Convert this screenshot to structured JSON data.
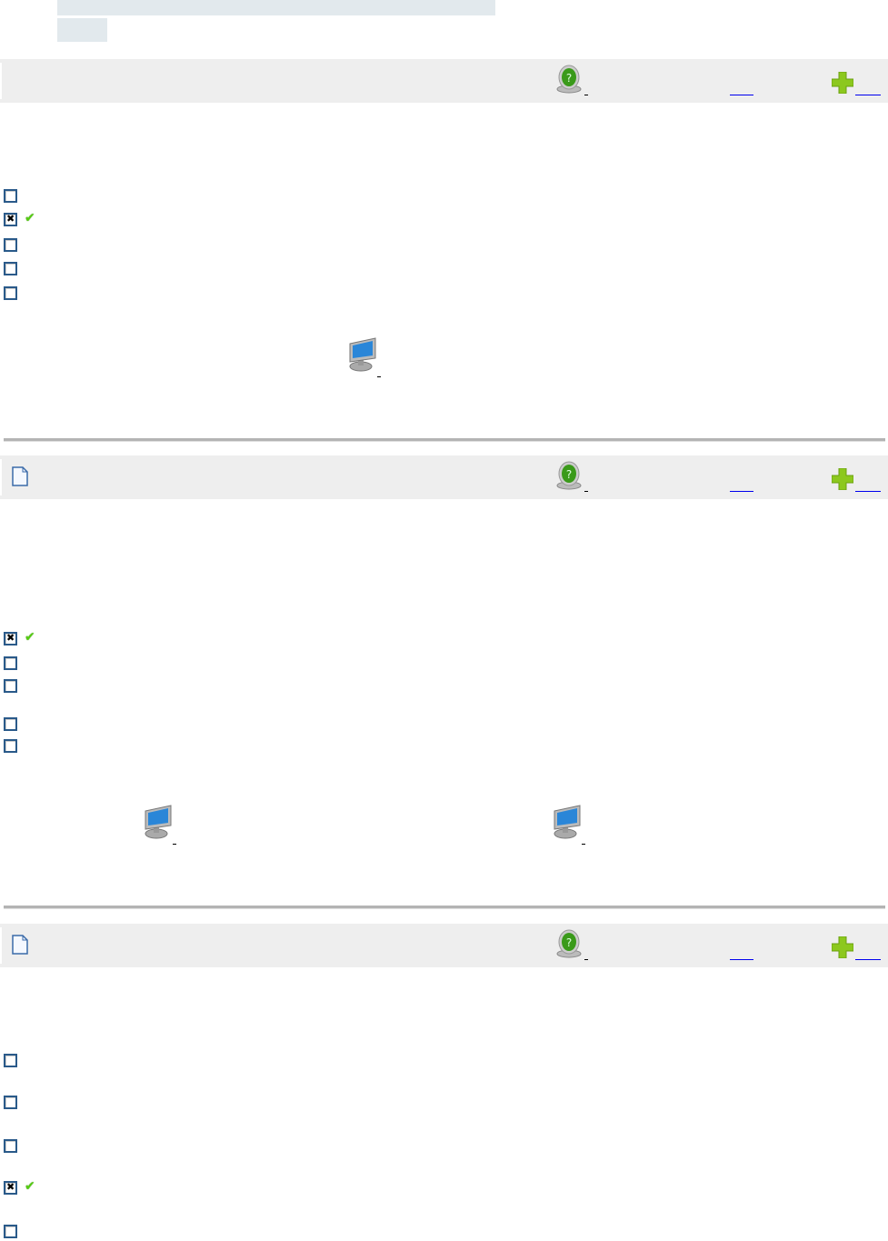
{
  "colors": {
    "header_bg": "#eeeeee",
    "link": "#0000ee",
    "checkbox_border": "#2a5a8a",
    "check_mark": "#55cc11"
  },
  "icons": {
    "help": "help-icon",
    "add": "plus-icon",
    "page": "document-icon",
    "computer": "monitor-icon",
    "check": "check-icon"
  },
  "sections": [
    {
      "checkboxes": [
        false,
        true,
        false,
        false,
        false
      ]
    },
    {
      "checkboxes": [
        true,
        false,
        false,
        false,
        false
      ]
    },
    {
      "checkboxes": [
        false,
        false,
        false,
        true,
        false
      ]
    }
  ]
}
